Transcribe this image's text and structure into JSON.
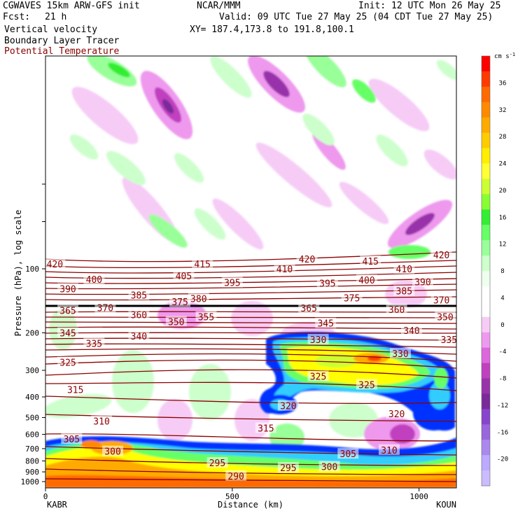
{
  "header": {
    "model": "CGWAVES 15km ARW-GFS init",
    "fcst_label": "Fcst:",
    "fcst_value": "21 h",
    "org": "NCAR/MMM",
    "init": "Init: 12 UTC Mon 26 May 25",
    "valid": "Valid: 09 UTC Tue 27 May 25 (04 CDT Tue 27 May 25)",
    "xy": "XY= 187.4,173.8 to 191.8,100.1",
    "field1": "Vertical velocity",
    "field2": "Boundary Layer Tracer",
    "field3": "Potential Temperature"
  },
  "colors": {
    "theta_line": "#8b0000",
    "bl_tracer_line": "#000000"
  },
  "chart_data": {
    "type": "heatmap",
    "x_axis": {
      "label": "Distance (km)",
      "ticks": [
        0,
        500,
        1000
      ],
      "range": [
        0,
        1100
      ],
      "left_endpoint": "KABR",
      "right_endpoint": "KOUN"
    },
    "y_axis": {
      "label": "Pressure (hPa), log scale",
      "scale": "log",
      "ticks": [
        100,
        200,
        300,
        400,
        500,
        600,
        700,
        800,
        900,
        1000
      ]
    },
    "colorbar": {
      "units": "cm s",
      "units_exp": "-1",
      "labels": [
        36,
        32,
        28,
        24,
        20,
        16,
        12,
        8,
        4,
        0,
        -4,
        -8,
        -12,
        -16,
        -20
      ],
      "colors_top_to_bottom": [
        "#ff0000",
        "#ff3a00",
        "#ff6a00",
        "#ff8a00",
        "#ffaa00",
        "#ffcc00",
        "#ffee00",
        "#ffff33",
        "#ccff33",
        "#88ff33",
        "#33ee33",
        "#66ff66",
        "#99ff99",
        "#ccffcc",
        "#eeffee",
        "#ffffff",
        "#ffffff",
        "#f6ccf6",
        "#ee99ee",
        "#dd66dd",
        "#c040c0",
        "#9933aa",
        "#7a2a99",
        "#8844cc",
        "#9966dd",
        "#aa88ee",
        "#bbaaff",
        "#ccbbff"
      ]
    },
    "theta_labels": [
      {
        "value": 420,
        "x": 25,
        "p": 95
      },
      {
        "value": 415,
        "x": 420,
        "p": 95
      },
      {
        "value": 420,
        "x": 700,
        "p": 90
      },
      {
        "value": 415,
        "x": 870,
        "p": 92
      },
      {
        "value": 420,
        "x": 1060,
        "p": 86
      },
      {
        "value": 410,
        "x": 640,
        "p": 100
      },
      {
        "value": 410,
        "x": 960,
        "p": 100
      },
      {
        "value": 400,
        "x": 130,
        "p": 112
      },
      {
        "value": 405,
        "x": 370,
        "p": 108
      },
      {
        "value": 395,
        "x": 500,
        "p": 116
      },
      {
        "value": 395,
        "x": 755,
        "p": 117
      },
      {
        "value": 400,
        "x": 860,
        "p": 113
      },
      {
        "value": 390,
        "x": 60,
        "p": 124
      },
      {
        "value": 390,
        "x": 1010,
        "p": 115
      },
      {
        "value": 385,
        "x": 250,
        "p": 133
      },
      {
        "value": 385,
        "x": 960,
        "p": 127
      },
      {
        "value": 375,
        "x": 360,
        "p": 143
      },
      {
        "value": 380,
        "x": 410,
        "p": 138
      },
      {
        "value": 375,
        "x": 820,
        "p": 137
      },
      {
        "value": 370,
        "x": 160,
        "p": 152
      },
      {
        "value": 370,
        "x": 1060,
        "p": 140
      },
      {
        "value": 365,
        "x": 60,
        "p": 157
      },
      {
        "value": 365,
        "x": 705,
        "p": 153
      },
      {
        "value": 360,
        "x": 250,
        "p": 164
      },
      {
        "value": 360,
        "x": 940,
        "p": 155
      },
      {
        "value": 355,
        "x": 430,
        "p": 168
      },
      {
        "value": 350,
        "x": 350,
        "p": 177
      },
      {
        "value": 350,
        "x": 1070,
        "p": 168
      },
      {
        "value": 345,
        "x": 60,
        "p": 200
      },
      {
        "value": 345,
        "x": 750,
        "p": 180
      },
      {
        "value": 340,
        "x": 250,
        "p": 207
      },
      {
        "value": 340,
        "x": 980,
        "p": 195
      },
      {
        "value": 335,
        "x": 130,
        "p": 224
      },
      {
        "value": 335,
        "x": 1080,
        "p": 215
      },
      {
        "value": 330,
        "x": 730,
        "p": 215
      },
      {
        "value": 330,
        "x": 950,
        "p": 250
      },
      {
        "value": 325,
        "x": 60,
        "p": 275
      },
      {
        "value": 325,
        "x": 730,
        "p": 320
      },
      {
        "value": 325,
        "x": 860,
        "p": 350
      },
      {
        "value": 320,
        "x": 650,
        "p": 440
      },
      {
        "value": 320,
        "x": 940,
        "p": 480
      },
      {
        "value": 315,
        "x": 80,
        "p": 370
      },
      {
        "value": 315,
        "x": 590,
        "p": 560
      },
      {
        "value": 310,
        "x": 150,
        "p": 520
      },
      {
        "value": 310,
        "x": 920,
        "p": 710
      },
      {
        "value": 305,
        "x": 70,
        "p": 630
      },
      {
        "value": 305,
        "x": 810,
        "p": 740
      },
      {
        "value": 300,
        "x": 180,
        "p": 720
      },
      {
        "value": 300,
        "x": 760,
        "p": 850
      },
      {
        "value": 295,
        "x": 460,
        "p": 815
      },
      {
        "value": 295,
        "x": 650,
        "p": 860
      },
      {
        "value": 290,
        "x": 510,
        "p": 940
      }
    ]
  }
}
